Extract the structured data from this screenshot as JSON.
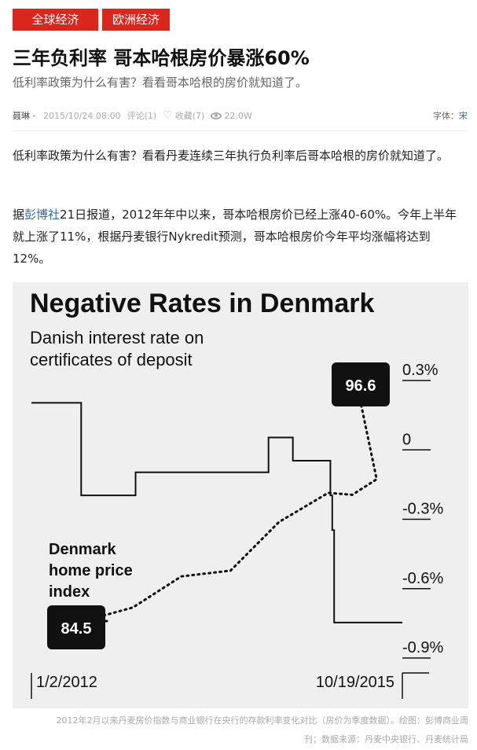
{
  "tags": [
    "全球经济",
    "欧洲经济"
  ],
  "headline": "三年负利率 哥本哈根房价暴涨60%",
  "subtitle": "低利率政策为什么有害？看看哥本哈根的房价就知道了。",
  "meta": {
    "author": "聂琳 ·",
    "date": "2015/10/24 08:00",
    "comments": "评论(1)",
    "favorites": "收藏(7)",
    "views": "22.0W",
    "font_label": "字体：",
    "font_value": "宋"
  },
  "body": {
    "p1": "低利率政策为什么有害？看看丹麦连续三年执行负利率后哥本哈根的房价就知道了。",
    "p2_pre": "据",
    "p2_link": "彭博社",
    "p2_post": "21日报道，2012年年中以来，哥本哈根房价已经上涨40-60%。今年上半年就上涨了11%，根据丹麦银行Nykredit预测，哥本哈根房价今年平均涨幅将达到12%。"
  },
  "chart_data": {
    "type": "line",
    "title": "Negative Rates in Denmark",
    "series": [
      {
        "name": "Danish interest rate on certificates of deposit",
        "style": "solid",
        "x": [
          "2012-01-02",
          "2012-06-01",
          "2012-07-06",
          "2013-01-25",
          "2014-04-25",
          "2014-06-06",
          "2014-09-05",
          "2015-01-20",
          "2015-01-23",
          "2015-01-30",
          "2015-02-06",
          "2015-10-19"
        ],
        "values": [
          0.2,
          0.2,
          -0.2,
          -0.1,
          -0.1,
          0.05,
          -0.05,
          -0.05,
          -0.2,
          -0.35,
          -0.75,
          -0.75
        ]
      },
      {
        "name": "Denmark home price index",
        "style": "dotted",
        "x": [
          "2012-01",
          "2012-07",
          "2013-01",
          "2013-07",
          "2014-01",
          "2014-07",
          "2015-01",
          "2015-04",
          "2015-07",
          "2015-10"
        ],
        "values": [
          84.5,
          84.5,
          85.2,
          86.8,
          87.1,
          89.6,
          91.1,
          91.0,
          91.8,
          96.6
        ],
        "start_label": "84.5",
        "end_label": "96.6"
      }
    ],
    "y_ticks": [
      "0.3%",
      "0",
      "-0.3%",
      "-0.6%",
      "-0.9%"
    ],
    "ylim": [
      -0.9,
      0.3
    ],
    "x_labels": [
      "1/2/2012",
      "10/19/2015"
    ],
    "background": "#efefef",
    "label_box_color": "#111111"
  },
  "caption": {
    "line1": "2012年2月以来丹麦房价指数与商业银行在央行的存款利率变化对比（房价为季度数据）。绘图：彭博商业周",
    "line2": "刊；数据来源：丹麦中央银行、丹麦统计局"
  }
}
